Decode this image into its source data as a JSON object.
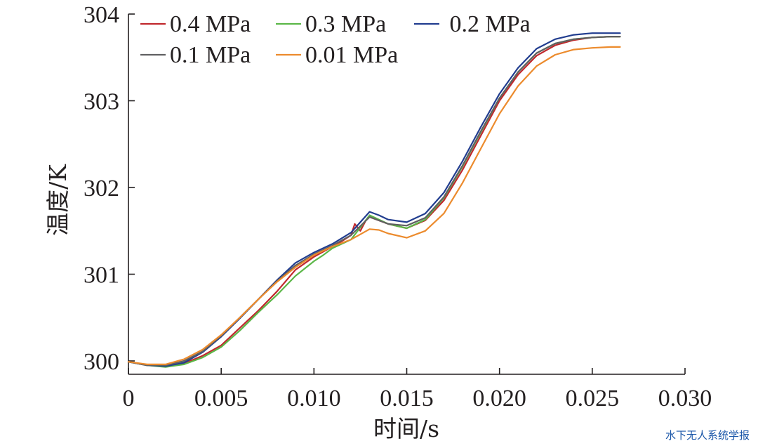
{
  "chart_data": {
    "type": "line",
    "title": "",
    "xlabel": "时间/s",
    "ylabel": "温度/K",
    "xlim": [
      0,
      0.03
    ],
    "ylim": [
      299.9,
      304
    ],
    "xticks": [
      0,
      0.005,
      0.01,
      0.015,
      0.02,
      0.025,
      0.03
    ],
    "xtick_labels": [
      "0",
      "0.005",
      "0.010",
      "0.015",
      "0.020",
      "0.025",
      "0.030"
    ],
    "yticks": [
      300,
      301,
      302,
      303,
      304
    ],
    "ytick_labels": [
      "300",
      "301",
      "302",
      "303",
      "304"
    ],
    "legend_position": "top-left",
    "series": [
      {
        "name": "0.4 MPa",
        "color": "#c0282d",
        "x": [
          0,
          0.001,
          0.002,
          0.003,
          0.004,
          0.005,
          0.006,
          0.007,
          0.008,
          0.009,
          0.01,
          0.011,
          0.0115,
          0.012,
          0.0122,
          0.0125,
          0.0128,
          0.013,
          0.014,
          0.015,
          0.016,
          0.017,
          0.018,
          0.019,
          0.02,
          0.021,
          0.022,
          0.023,
          0.024,
          0.025,
          0.026,
          0.0265
        ],
        "y": [
          299.99,
          299.95,
          299.94,
          299.97,
          300.06,
          300.18,
          300.38,
          300.58,
          300.8,
          301.05,
          301.2,
          301.32,
          301.38,
          301.45,
          301.58,
          301.5,
          301.62,
          301.66,
          301.58,
          301.53,
          301.62,
          301.85,
          302.2,
          302.6,
          303.0,
          303.3,
          303.52,
          303.64,
          303.7,
          303.73,
          303.74,
          303.74
        ]
      },
      {
        "name": "0.3 MPa",
        "color": "#5bb748",
        "x": [
          0,
          0.001,
          0.002,
          0.003,
          0.004,
          0.005,
          0.006,
          0.007,
          0.008,
          0.009,
          0.01,
          0.0105,
          0.011,
          0.012,
          0.013,
          0.014,
          0.015,
          0.016,
          0.017,
          0.018,
          0.019,
          0.02,
          0.021,
          0.022,
          0.023,
          0.024,
          0.025,
          0.026,
          0.0265
        ],
        "y": [
          299.99,
          299.95,
          299.93,
          299.96,
          300.04,
          300.16,
          300.35,
          300.56,
          300.76,
          300.98,
          301.15,
          301.22,
          301.3,
          301.4,
          301.68,
          301.58,
          301.53,
          301.63,
          301.88,
          302.24,
          302.64,
          303.03,
          303.33,
          303.55,
          303.66,
          303.71,
          303.73,
          303.74,
          303.74
        ]
      },
      {
        "name": "0.2 MPa",
        "color": "#213d8f",
        "x": [
          0,
          0.001,
          0.002,
          0.003,
          0.004,
          0.005,
          0.006,
          0.007,
          0.008,
          0.009,
          0.01,
          0.011,
          0.012,
          0.013,
          0.0135,
          0.014,
          0.015,
          0.016,
          0.017,
          0.018,
          0.019,
          0.02,
          0.021,
          0.022,
          0.023,
          0.024,
          0.025,
          0.026,
          0.0265
        ],
        "y": [
          299.99,
          299.95,
          299.94,
          299.98,
          300.1,
          300.28,
          300.49,
          300.71,
          300.93,
          301.13,
          301.25,
          301.35,
          301.48,
          301.72,
          301.68,
          301.63,
          301.6,
          301.7,
          301.94,
          302.3,
          302.7,
          303.08,
          303.38,
          303.6,
          303.71,
          303.76,
          303.78,
          303.78,
          303.78
        ]
      },
      {
        "name": "0.1 MPa",
        "color": "#606062",
        "x": [
          0,
          0.001,
          0.002,
          0.003,
          0.004,
          0.005,
          0.006,
          0.007,
          0.008,
          0.009,
          0.01,
          0.011,
          0.012,
          0.013,
          0.014,
          0.015,
          0.016,
          0.017,
          0.018,
          0.019,
          0.02,
          0.021,
          0.022,
          0.023,
          0.024,
          0.025,
          0.026,
          0.0265
        ],
        "y": [
          299.99,
          299.95,
          299.95,
          300.0,
          300.11,
          300.29,
          300.5,
          300.71,
          300.92,
          301.1,
          301.23,
          301.33,
          301.45,
          301.66,
          301.58,
          301.56,
          301.65,
          301.89,
          302.25,
          302.65,
          303.03,
          303.33,
          303.55,
          303.66,
          303.71,
          303.73,
          303.74,
          303.74
        ]
      },
      {
        "name": "0.01 MPa",
        "color": "#ec8b2d",
        "x": [
          0,
          0.001,
          0.002,
          0.003,
          0.004,
          0.005,
          0.006,
          0.007,
          0.008,
          0.009,
          0.01,
          0.011,
          0.012,
          0.013,
          0.0135,
          0.014,
          0.015,
          0.016,
          0.017,
          0.018,
          0.019,
          0.02,
          0.021,
          0.022,
          0.023,
          0.024,
          0.025,
          0.026,
          0.0265
        ],
        "y": [
          299.99,
          299.96,
          299.96,
          300.02,
          300.13,
          300.3,
          300.5,
          300.71,
          300.91,
          301.08,
          301.22,
          301.32,
          301.4,
          301.52,
          301.51,
          301.47,
          301.42,
          301.5,
          301.7,
          302.05,
          302.45,
          302.85,
          303.17,
          303.4,
          303.53,
          303.59,
          303.61,
          303.62,
          303.62
        ]
      }
    ]
  },
  "watermark": "水下无人系统学报"
}
